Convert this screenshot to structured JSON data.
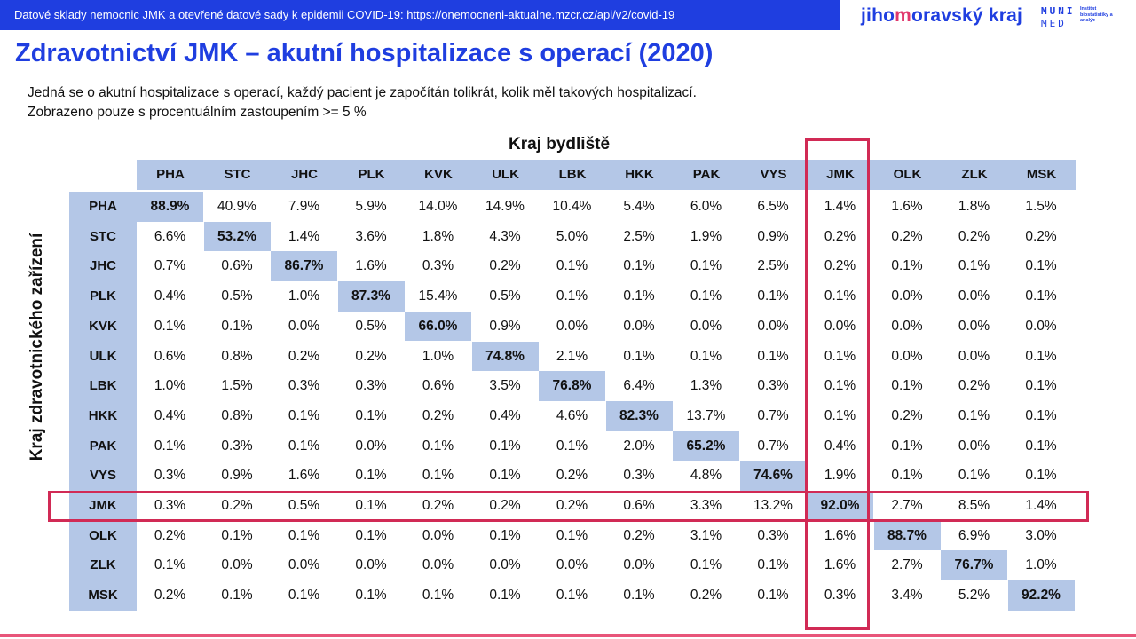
{
  "header": {
    "source_text": "Datové sklady nemocnic JMK a otevřené datové sady k epidemii COVID-19: https://onemocneni-aktualne.mzcr.cz/api/v2/covid-19",
    "brand_prefix": "jiho",
    "brand_highlight": "m",
    "brand_suffix": "oravský kraj",
    "logo_line1": "MUNI",
    "logo_line2": "MED",
    "logo_caption": "Institut biostatistiky a analýz"
  },
  "title": "Zdravotnictví JMK – akutní hospitalizace s operací (2020)",
  "subtitle_line1": "Jedná se o akutní hospitalizace s operací, každý pacient je započítán tolikrát, kolik měl takových hospitalizací.",
  "subtitle_line2": "Zobrazeno pouze s procentuálním zastoupením >= 5 %",
  "column_axis_title": "Kraj bydliště",
  "row_axis_title": "Kraj zdravotnického zařízení",
  "highlight_color": "#d12a55",
  "header_fill_color": "#b4c7e7",
  "highlighted_region": "JMK",
  "chart_data": {
    "type": "table",
    "columns": [
      "PHA",
      "STC",
      "JHC",
      "PLK",
      "KVK",
      "ULK",
      "LBK",
      "HKK",
      "PAK",
      "VYS",
      "JMK",
      "OLK",
      "ZLK",
      "MSK"
    ],
    "rows": [
      {
        "label": "PHA",
        "values": [
          "88.9%",
          "40.9%",
          "7.9%",
          "5.9%",
          "14.0%",
          "14.9%",
          "10.4%",
          "5.4%",
          "6.0%",
          "6.5%",
          "1.4%",
          "1.6%",
          "1.8%",
          "1.5%"
        ]
      },
      {
        "label": "STC",
        "values": [
          "6.6%",
          "53.2%",
          "1.4%",
          "3.6%",
          "1.8%",
          "4.3%",
          "5.0%",
          "2.5%",
          "1.9%",
          "0.9%",
          "0.2%",
          "0.2%",
          "0.2%",
          "0.2%"
        ]
      },
      {
        "label": "JHC",
        "values": [
          "0.7%",
          "0.6%",
          "86.7%",
          "1.6%",
          "0.3%",
          "0.2%",
          "0.1%",
          "0.1%",
          "0.1%",
          "2.5%",
          "0.2%",
          "0.1%",
          "0.1%",
          "0.1%"
        ]
      },
      {
        "label": "PLK",
        "values": [
          "0.4%",
          "0.5%",
          "1.0%",
          "87.3%",
          "15.4%",
          "0.5%",
          "0.1%",
          "0.1%",
          "0.1%",
          "0.1%",
          "0.1%",
          "0.0%",
          "0.0%",
          "0.1%"
        ]
      },
      {
        "label": "KVK",
        "values": [
          "0.1%",
          "0.1%",
          "0.0%",
          "0.5%",
          "66.0%",
          "0.9%",
          "0.0%",
          "0.0%",
          "0.0%",
          "0.0%",
          "0.0%",
          "0.0%",
          "0.0%",
          "0.0%"
        ]
      },
      {
        "label": "ULK",
        "values": [
          "0.6%",
          "0.8%",
          "0.2%",
          "0.2%",
          "1.0%",
          "74.8%",
          "2.1%",
          "0.1%",
          "0.1%",
          "0.1%",
          "0.1%",
          "0.0%",
          "0.0%",
          "0.1%"
        ]
      },
      {
        "label": "LBK",
        "values": [
          "1.0%",
          "1.5%",
          "0.3%",
          "0.3%",
          "0.6%",
          "3.5%",
          "76.8%",
          "6.4%",
          "1.3%",
          "0.3%",
          "0.1%",
          "0.1%",
          "0.2%",
          "0.1%"
        ]
      },
      {
        "label": "HKK",
        "values": [
          "0.4%",
          "0.8%",
          "0.1%",
          "0.1%",
          "0.2%",
          "0.4%",
          "4.6%",
          "82.3%",
          "13.7%",
          "0.7%",
          "0.1%",
          "0.2%",
          "0.1%",
          "0.1%"
        ]
      },
      {
        "label": "PAK",
        "values": [
          "0.1%",
          "0.3%",
          "0.1%",
          "0.0%",
          "0.1%",
          "0.1%",
          "0.1%",
          "2.0%",
          "65.2%",
          "0.7%",
          "0.4%",
          "0.1%",
          "0.0%",
          "0.1%"
        ]
      },
      {
        "label": "VYS",
        "values": [
          "0.3%",
          "0.9%",
          "1.6%",
          "0.1%",
          "0.1%",
          "0.1%",
          "0.2%",
          "0.3%",
          "4.8%",
          "74.6%",
          "1.9%",
          "0.1%",
          "0.1%",
          "0.1%"
        ]
      },
      {
        "label": "JMK",
        "values": [
          "0.3%",
          "0.2%",
          "0.5%",
          "0.1%",
          "0.2%",
          "0.2%",
          "0.2%",
          "0.6%",
          "3.3%",
          "13.2%",
          "92.0%",
          "2.7%",
          "8.5%",
          "1.4%"
        ]
      },
      {
        "label": "OLK",
        "values": [
          "0.2%",
          "0.1%",
          "0.1%",
          "0.1%",
          "0.0%",
          "0.1%",
          "0.1%",
          "0.2%",
          "3.1%",
          "0.3%",
          "1.6%",
          "88.7%",
          "6.9%",
          "3.0%"
        ]
      },
      {
        "label": "ZLK",
        "values": [
          "0.1%",
          "0.0%",
          "0.0%",
          "0.0%",
          "0.0%",
          "0.0%",
          "0.0%",
          "0.0%",
          "0.1%",
          "0.1%",
          "1.6%",
          "2.7%",
          "76.7%",
          "1.0%"
        ]
      },
      {
        "label": "MSK",
        "values": [
          "0.2%",
          "0.1%",
          "0.1%",
          "0.1%",
          "0.1%",
          "0.1%",
          "0.1%",
          "0.1%",
          "0.2%",
          "0.1%",
          "0.3%",
          "3.4%",
          "5.2%",
          "92.2%"
        ]
      }
    ]
  }
}
